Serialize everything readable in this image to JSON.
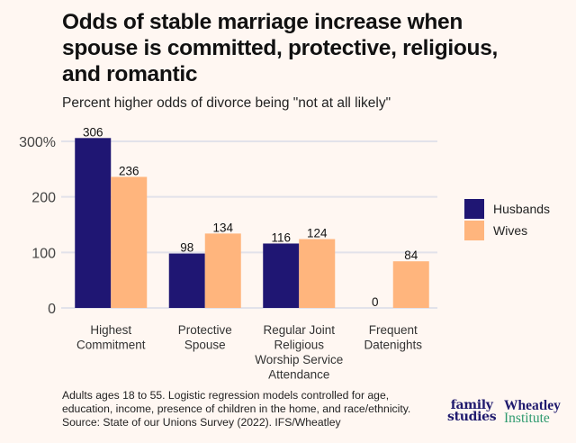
{
  "chart_data": {
    "type": "bar",
    "title": "Odds of stable marriage increase when spouse is committed, protective, religious, and romantic",
    "subtitle": "Percent higher odds of divorce being \"not at all likely\"",
    "categories": [
      [
        "Highest",
        "Commitment"
      ],
      [
        "Protective",
        "Spouse"
      ],
      [
        "Regular Joint",
        "Religious",
        "Worship Service",
        "Attendance"
      ],
      [
        "Frequent",
        "Datenights"
      ]
    ],
    "series": [
      {
        "name": "Husbands",
        "color": "#1f1673",
        "values": [
          306,
          98,
          116,
          0
        ]
      },
      {
        "name": "Wives",
        "color": "#ffb57d",
        "values": [
          236,
          134,
          124,
          84
        ]
      }
    ],
    "yticks": [
      0,
      100,
      200,
      300
    ],
    "ytick_labels": [
      "0",
      "100",
      "200",
      "300%"
    ],
    "ylim": [
      0,
      300
    ],
    "xlabel": "",
    "ylabel": "",
    "grid": true,
    "legend_position": "right"
  },
  "caption": [
    "Adults ages 18 to 55. Logistic regression models controlled for age,",
    "education, income, presence of children in the home, and race/ethnicity.",
    "Source: State of our Unions Survey (2022). IFS/Wheatley"
  ],
  "logos": {
    "family_studies": [
      "family",
      "studies"
    ],
    "wheatley": [
      "Wheatley",
      "Institute"
    ]
  }
}
